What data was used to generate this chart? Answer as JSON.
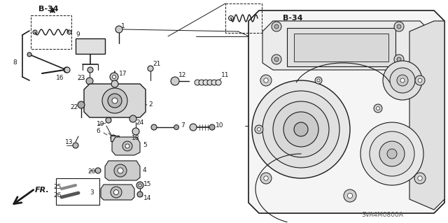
{
  "background_color": "#ffffff",
  "watermark": "SVA4M0800A",
  "figsize": [
    6.4,
    3.19
  ],
  "dpi": 100,
  "line_color": "#1a1a1a",
  "labels": {
    "b34_left": "B-34",
    "b34_right": "B-34",
    "fr": "FR.",
    "watermark": "SVA4M0800A"
  }
}
